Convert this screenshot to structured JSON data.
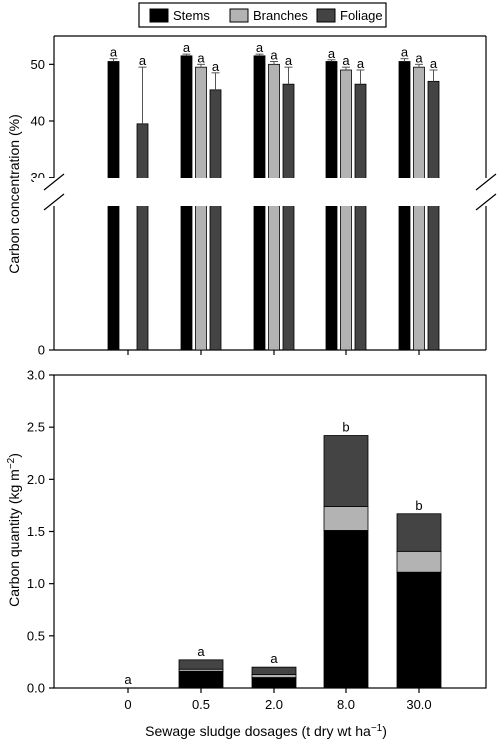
{
  "colors": {
    "stems": "#000000",
    "branches": "#b3b3b3",
    "foliage": "#444444",
    "axis": "#000000"
  },
  "legend": {
    "position": "top-center",
    "items": [
      {
        "label": "Stems",
        "color": "#000000"
      },
      {
        "label": "Branches",
        "color": "#b3b3b3"
      },
      {
        "label": "Foliage",
        "color": "#444444"
      }
    ]
  },
  "chart_data": [
    {
      "type": "bar",
      "panel": "top",
      "ylabel": "Carbon concentration (%)",
      "xlabel": "",
      "categories": [
        "0",
        "0.5",
        "2.0",
        "8.0",
        "30.0"
      ],
      "axis_break": {
        "from": 0,
        "to": 25
      },
      "ylim": [
        0,
        55
      ],
      "yticks": [
        0,
        30,
        40,
        50
      ],
      "ytick_labels": [
        "0",
        "30",
        "40",
        "50"
      ],
      "grid": false,
      "series": [
        {
          "name": "Stems",
          "values": [
            50.5,
            51.5,
            51.5,
            50.5,
            50.5
          ],
          "errors": [
            0.5,
            0.3,
            0.3,
            0.3,
            0.5
          ]
        },
        {
          "name": "Branches",
          "values": [
            null,
            49.5,
            50.0,
            49.0,
            49.5
          ],
          "errors": [
            null,
            0.5,
            0.5,
            0.5,
            0.5
          ]
        },
        {
          "name": "Foliage",
          "values": [
            39.5,
            45.5,
            46.5,
            46.5,
            47.0
          ],
          "errors": [
            10.0,
            3.0,
            3.0,
            2.5,
            2.0
          ]
        }
      ],
      "letters": [
        [
          "a",
          null,
          "a"
        ],
        [
          "a",
          "a",
          "a"
        ],
        [
          "a",
          "a",
          "a"
        ],
        [
          "a",
          "a",
          "a"
        ],
        [
          "a",
          "a",
          "a"
        ]
      ]
    },
    {
      "type": "bar",
      "stacked": true,
      "panel": "bottom",
      "ylabel": "Carbon quantity (kg m−2)",
      "xlabel": "Sewage sludge dosages (t dry wt ha−1)",
      "categories": [
        "0",
        "0.5",
        "2.0",
        "8.0",
        "30.0"
      ],
      "ylim": [
        0,
        3.0
      ],
      "yticks": [
        0,
        0.5,
        1.0,
        1.5,
        2.0,
        2.5,
        3.0
      ],
      "ytick_labels": [
        "0.0",
        "0.5",
        "1.0",
        "1.5",
        "2.0",
        "2.5",
        "3.0"
      ],
      "grid": false,
      "series": [
        {
          "name": "Stems",
          "values": [
            0,
            0.16,
            0.1,
            1.51,
            1.11
          ]
        },
        {
          "name": "Branches",
          "values": [
            0,
            0.02,
            0.03,
            0.23,
            0.2
          ]
        },
        {
          "name": "Foliage",
          "values": [
            0,
            0.09,
            0.07,
            0.68,
            0.36
          ]
        }
      ],
      "letters": [
        "a",
        "a",
        "a",
        "b",
        "b"
      ]
    }
  ]
}
